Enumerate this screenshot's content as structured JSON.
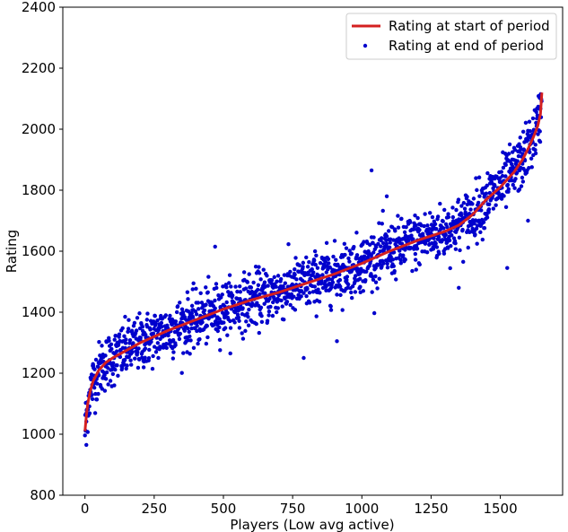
{
  "chart_data": {
    "type": "scatter",
    "title": "",
    "xlabel": "Players (Low avg  active)",
    "ylabel": "Rating",
    "xlim": [
      -80,
      1725
    ],
    "ylim": [
      800,
      2400
    ],
    "xticks": [
      0,
      250,
      500,
      750,
      1000,
      1250,
      1500
    ],
    "yticks": [
      800,
      1000,
      1200,
      1400,
      1600,
      1800,
      2000,
      2200,
      2400
    ],
    "grid": false,
    "legend_position": "top-right",
    "n_players": 1650,
    "series": [
      {
        "name": "Rating at start of period",
        "kind": "line",
        "color": "#d42020",
        "x": [
          0,
          5,
          10,
          20,
          30,
          50,
          75,
          100,
          150,
          200,
          300,
          400,
          500,
          600,
          700,
          800,
          900,
          1000,
          1100,
          1200,
          1300,
          1350,
          1400,
          1450,
          1500,
          1550,
          1580,
          1600,
          1620,
          1635,
          1645,
          1650
        ],
        "y": [
          1010,
          1060,
          1100,
          1145,
          1175,
          1210,
          1235,
          1250,
          1275,
          1300,
          1340,
          1375,
          1410,
          1440,
          1465,
          1495,
          1525,
          1560,
          1600,
          1635,
          1665,
          1685,
          1720,
          1770,
          1810,
          1860,
          1900,
          1935,
          1975,
          2010,
          2050,
          2120
        ]
      },
      {
        "name": "Rating at end of period",
        "kind": "scatter",
        "color": "#0000cc",
        "points": 1650,
        "spread": 45,
        "outliers": [
          [
            5,
            965
          ],
          [
            790,
            1250
          ],
          [
            910,
            1305
          ],
          [
            1035,
            1865
          ],
          [
            1525,
            1545
          ],
          [
            1350,
            1480
          ],
          [
            1600,
            1700
          ],
          [
            470,
            1615
          ],
          [
            1050,
            1545
          ],
          [
            1090,
            1780
          ]
        ]
      }
    ]
  }
}
